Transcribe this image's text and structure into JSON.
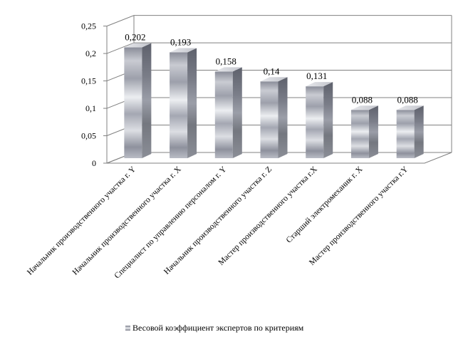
{
  "chart_data": {
    "type": "bar",
    "style": "3d-cylinder-box",
    "categories": [
      "Начальник производственного участка г. Y",
      "Начальник производственного участка г. X",
      "Специалист по управлению персоналом г. Y",
      "Начальник производственного участка г. Z",
      "Мастер производственного участка г.X",
      "Старший электромеханик г. X",
      "Мастер производственного участка г.Y"
    ],
    "series": [
      {
        "name": "Весовой коэффициент экспертов по критериям",
        "values": [
          0.202,
          0.193,
          0.158,
          0.14,
          0.131,
          0.088,
          0.088
        ],
        "value_labels": [
          "0,202",
          "0,193",
          "0,158",
          "0,14",
          "0,131",
          "0,088",
          "0,088"
        ]
      }
    ],
    "ylim": [
      0,
      0.25
    ],
    "yticks": [
      0,
      0.05,
      0.1,
      0.15,
      0.2,
      0.25
    ],
    "ytick_labels": [
      "0",
      "0,05",
      "0,1",
      "0,15",
      "0,2",
      "0,25"
    ],
    "grid": true,
    "legend_position": "bottom",
    "title": "",
    "xlabel": "",
    "ylabel": ""
  }
}
